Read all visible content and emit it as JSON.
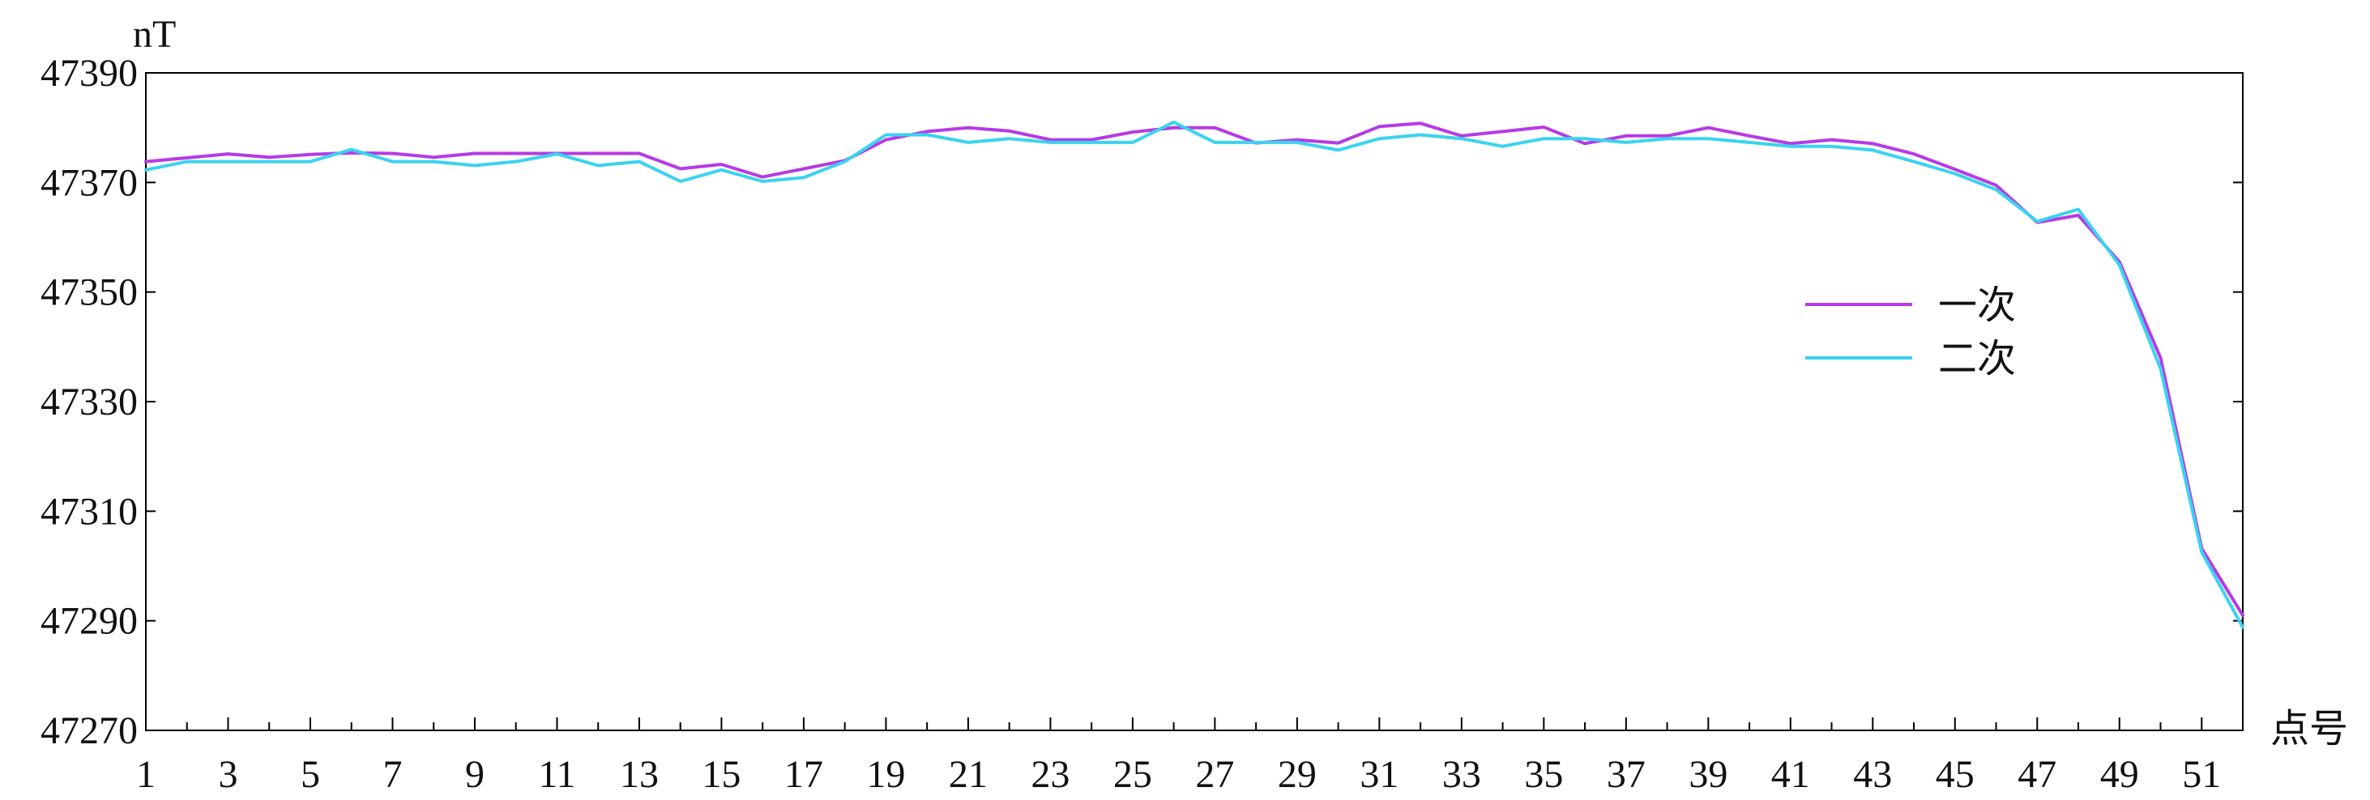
{
  "chart_data": {
    "type": "line",
    "ylabel": "nT",
    "xlabel": "点号",
    "ylim": [
      47270,
      47390
    ],
    "yticks": [
      47270,
      47290,
      47310,
      47330,
      47350,
      47370,
      47390
    ],
    "xlim": [
      1,
      52
    ],
    "xticks": [
      1,
      3,
      5,
      7,
      9,
      11,
      13,
      15,
      17,
      19,
      21,
      23,
      25,
      27,
      29,
      31,
      33,
      35,
      37,
      39,
      41,
      43,
      45,
      47,
      49,
      51
    ],
    "legend_position": "right",
    "grid": false,
    "x": [
      1,
      2,
      3,
      4,
      5,
      6,
      7,
      8,
      9,
      10,
      11,
      12,
      13,
      14,
      15,
      16,
      17,
      18,
      19,
      20,
      21,
      22,
      23,
      24,
      25,
      26,
      27,
      28,
      29,
      30,
      31,
      32,
      33,
      34,
      35,
      36,
      37,
      38,
      39,
      40,
      41,
      42,
      43,
      44,
      45,
      46,
      47,
      48,
      49,
      50,
      51,
      52
    ],
    "series": [
      {
        "name": "一次",
        "color": "#b63ae6",
        "values": [
          47373.8,
          47374.5,
          47375.2,
          47374.6,
          47375.1,
          47375.4,
          47375.3,
          47374.6,
          47375.3,
          47375.3,
          47375.3,
          47375.3,
          47375.3,
          47372.5,
          47373.3,
          47371.0,
          47372.5,
          47374.0,
          47377.8,
          47379.3,
          47380.0,
          47379.4,
          47377.8,
          47377.8,
          47379.2,
          47380.0,
          47380.0,
          47377.2,
          47377.8,
          47377.2,
          47380.2,
          47380.8,
          47378.5,
          47379.3,
          47380.1,
          47377.1,
          47378.5,
          47378.5,
          47380.0,
          47378.5,
          47377.1,
          47377.8,
          47377.1,
          47375.2,
          47372.4,
          47369.5,
          47362.7,
          47364.0,
          47355.5,
          47338.0,
          47303.2,
          47291.0
        ]
      },
      {
        "name": "二次",
        "color": "#3ad3f0",
        "values": [
          47372.3,
          47373.8,
          47373.8,
          47373.8,
          47373.8,
          47376.0,
          47373.8,
          47373.8,
          47373.1,
          47373.8,
          47375.2,
          47373.1,
          47373.8,
          47370.2,
          47372.3,
          47370.2,
          47370.9,
          47373.8,
          47378.7,
          47378.7,
          47377.3,
          47378.0,
          47377.3,
          47377.3,
          47377.3,
          47381.0,
          47377.3,
          47377.3,
          47377.3,
          47375.9,
          47378.0,
          47378.7,
          47378.0,
          47376.6,
          47378.0,
          47378.0,
          47377.3,
          47378.0,
          47378.0,
          47377.3,
          47376.6,
          47376.6,
          47375.9,
          47373.8,
          47371.6,
          47368.7,
          47362.9,
          47365.1,
          47354.9,
          47336.0,
          47302.5,
          47288.8
        ]
      }
    ]
  }
}
